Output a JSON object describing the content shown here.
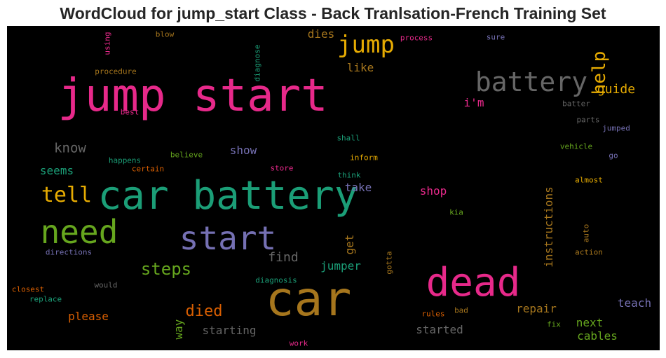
{
  "title": "WordCloud for jump_start Class - Back Tranlsation-French Training Set",
  "colors": {
    "pink": "#e7298a",
    "green": "#1b9e77",
    "olive": "#66a61e",
    "purple": "#7570b3",
    "orange": "#d95f02",
    "gold": "#e6ab02",
    "brown": "#a6761d",
    "gray": "#666666"
  },
  "words": [
    {
      "text": "jump start",
      "color": "pink"
    },
    {
      "text": "car battery",
      "color": "green"
    },
    {
      "text": "car",
      "color": "brown"
    },
    {
      "text": "dead",
      "color": "pink"
    },
    {
      "text": "start",
      "color": "purple"
    },
    {
      "text": "need",
      "color": "olive"
    },
    {
      "text": "battery",
      "color": "gray"
    },
    {
      "text": "jump",
      "color": "gold"
    },
    {
      "text": "tell",
      "color": "gold"
    },
    {
      "text": "help",
      "color": "gold"
    },
    {
      "text": "steps",
      "color": "olive"
    },
    {
      "text": "died",
      "color": "orange"
    },
    {
      "text": "guide",
      "color": "gold"
    },
    {
      "text": "know",
      "color": "gray"
    },
    {
      "text": "find",
      "color": "gray"
    },
    {
      "text": "jumper",
      "color": "green"
    },
    {
      "text": "dies",
      "color": "brown"
    },
    {
      "text": "like",
      "color": "brown"
    },
    {
      "text": "i'm",
      "color": "pink"
    },
    {
      "text": "show",
      "color": "purple"
    },
    {
      "text": "seems",
      "color": "green"
    },
    {
      "text": "take",
      "color": "purple"
    },
    {
      "text": "shop",
      "color": "pink"
    },
    {
      "text": "get",
      "color": "brown"
    },
    {
      "text": "instructions",
      "color": "brown"
    },
    {
      "text": "repair",
      "color": "brown"
    },
    {
      "text": "teach",
      "color": "purple"
    },
    {
      "text": "next",
      "color": "olive"
    },
    {
      "text": "cables",
      "color": "olive"
    },
    {
      "text": "please",
      "color": "orange"
    },
    {
      "text": "starting",
      "color": "gray"
    },
    {
      "text": "started",
      "color": "gray"
    },
    {
      "text": "way",
      "color": "olive"
    },
    {
      "text": "using",
      "color": "pink"
    },
    {
      "text": "blow",
      "color": "brown"
    },
    {
      "text": "diagnose",
      "color": "green"
    },
    {
      "text": "process",
      "color": "pink"
    },
    {
      "text": "sure",
      "color": "purple"
    },
    {
      "text": "procedure",
      "color": "brown"
    },
    {
      "text": "best",
      "color": "pink"
    },
    {
      "text": "batter",
      "color": "gray"
    },
    {
      "text": "parts",
      "color": "gray"
    },
    {
      "text": "jumped",
      "color": "purple"
    },
    {
      "text": "shall",
      "color": "green"
    },
    {
      "text": "vehicle",
      "color": "olive"
    },
    {
      "text": "go",
      "color": "purple"
    },
    {
      "text": "happens",
      "color": "green"
    },
    {
      "text": "believe",
      "color": "olive"
    },
    {
      "text": "certain",
      "color": "orange"
    },
    {
      "text": "inform",
      "color": "gold"
    },
    {
      "text": "store",
      "color": "pink"
    },
    {
      "text": "think",
      "color": "green"
    },
    {
      "text": "almost",
      "color": "gold"
    },
    {
      "text": "kia",
      "color": "olive"
    },
    {
      "text": "auto",
      "color": "brown"
    },
    {
      "text": "action",
      "color": "brown"
    },
    {
      "text": "directions",
      "color": "purple"
    },
    {
      "text": "gotta",
      "color": "brown"
    },
    {
      "text": "diagnosis",
      "color": "green"
    },
    {
      "text": "would",
      "color": "gray"
    },
    {
      "text": "closest",
      "color": "orange"
    },
    {
      "text": "replace",
      "color": "green"
    },
    {
      "text": "rules",
      "color": "orange"
    },
    {
      "text": "bad",
      "color": "brown"
    },
    {
      "text": "fix",
      "color": "olive"
    },
    {
      "text": "work",
      "color": "pink"
    }
  ]
}
